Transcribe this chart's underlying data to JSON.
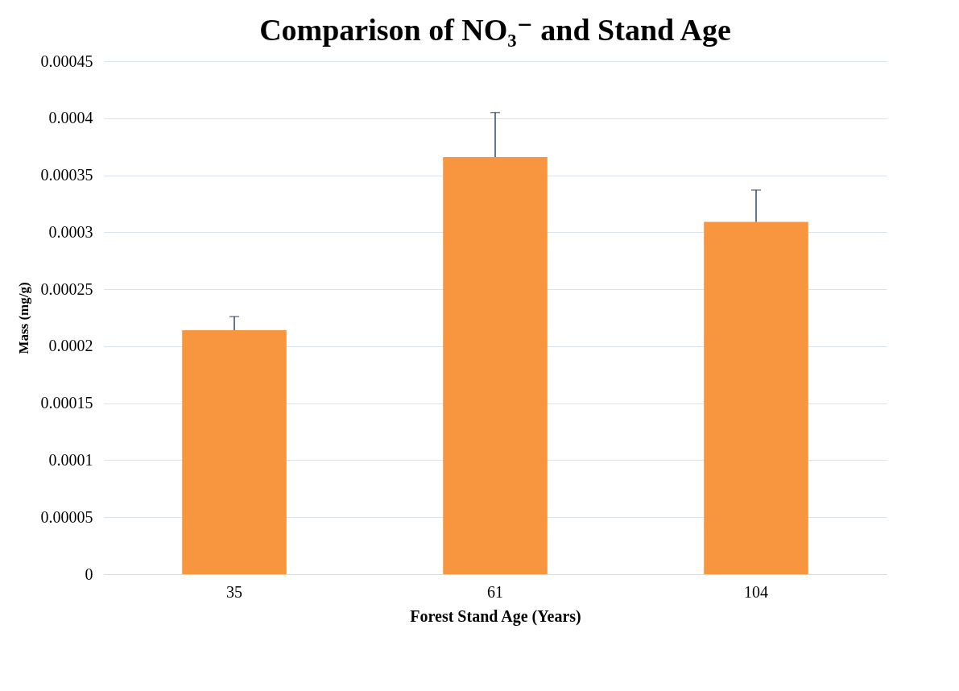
{
  "chart_data": {
    "type": "bar",
    "title": "Comparison of NO₃⁻ and Stand Age",
    "xlabel": "Forest Stand Age (Years)",
    "ylabel": "Mass (mg/g)",
    "categories": [
      "35",
      "61",
      "104"
    ],
    "values": [
      0.000214,
      0.000366,
      0.000309
    ],
    "errors": [
      [
        0.000214,
        0.000226
      ],
      [
        0.000366,
        0.000405
      ],
      [
        0.000309,
        0.000337
      ]
    ],
    "color": "#f7963f",
    "ylim": [
      0,
      0.00045
    ],
    "yticks": [
      0,
      {
        "value": 5e-05,
        "label": "0.00005"
      },
      0.0001,
      0.00015,
      0.0002,
      0.00025,
      0.0003,
      0.00035,
      0.0004,
      0.00045
    ],
    "grid": "y"
  }
}
